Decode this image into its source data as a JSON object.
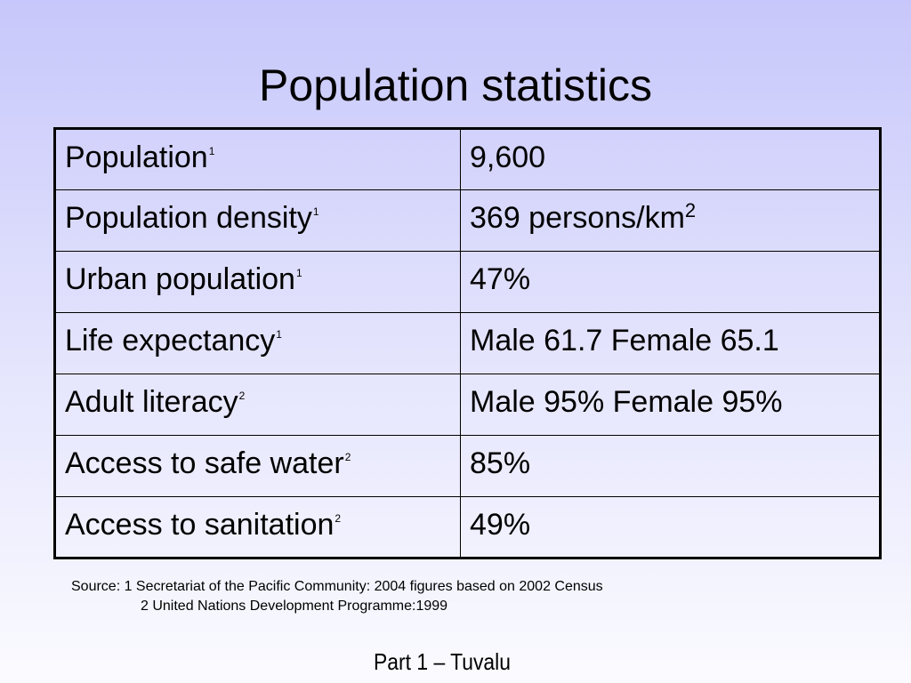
{
  "slide": {
    "title": "Population statistics",
    "footer": "Part 1 – Tuvalu"
  },
  "table": {
    "rows": [
      {
        "label": "Population",
        "label_note": "1",
        "value": "9,600",
        "value_sup": ""
      },
      {
        "label": "Population density",
        "label_note": "1",
        "value": "369 persons/km",
        "value_sup": "2"
      },
      {
        "label": "Urban population",
        "label_note": "1",
        "value": "47%",
        "value_sup": ""
      },
      {
        "label": "Life expectancy",
        "label_note": "1",
        "value": "Male 61.7 Female 65.1",
        "value_sup": ""
      },
      {
        "label": "Adult literacy",
        "label_note": "2",
        "value": "Male 95% Female 95%",
        "value_sup": ""
      },
      {
        "label": "Access to safe water",
        "label_note": "2",
        "value": "85%",
        "value_sup": ""
      },
      {
        "label": "Access to sanitation",
        "label_note": "2",
        "value": "49%",
        "value_sup": ""
      }
    ]
  },
  "source": {
    "line1": "Source: 1 Secretariat of the Pacific Community: 2004 figures based on 2002 Census",
    "line2": "2 United Nations Development Programme:1999"
  }
}
